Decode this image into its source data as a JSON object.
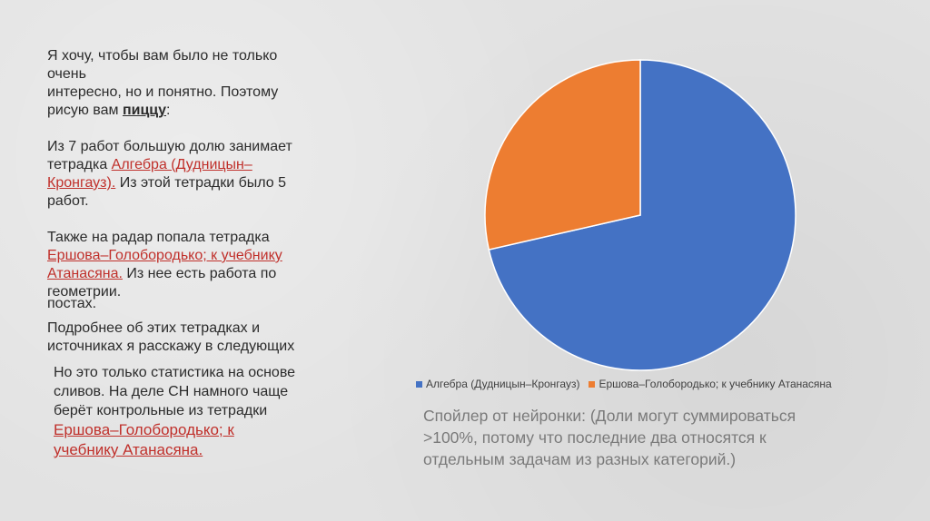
{
  "intro": {
    "line1": "Я хочу, чтобы вам было не только",
    "line2": "очень",
    "line3": "интересно, но и понятно. Поэтому",
    "line4_prefix": "рисую вам ",
    "line4_bold": "пиццу",
    "line4_suffix": ":"
  },
  "para2": {
    "line1": "Из 7 работ большую долю занимает",
    "line2_prefix": "тетрадка ",
    "link_a": "Алгебра (Дудницын–",
    "link_b": "Кронгауз).",
    "line3_suffix": " Из этой тетрадки было 5",
    "line4": "работ."
  },
  "para3": {
    "line1": "Также на радар попала тетрадка",
    "link_a": "Ершова–Голобородько; к учебнику",
    "link_b": "Атанасяна.",
    "line3_suffix": " Из нее есть работа по",
    "line4": "геометрии.",
    "overflow": "постах."
  },
  "para4": {
    "line1": "Подробнее об этих тетрадках и",
    "line2": "источниках я расскажу в следующих"
  },
  "overlap": {
    "line1": "Но это только статистика на основе",
    "line2": "сливов. На деле СН намного чаще",
    "line3": "берёт контрольные из тетрадки",
    "link_a": "Ершова–Голобородько; к",
    "link_b": "учебнику Атанасяна."
  },
  "chart_data": {
    "type": "pie",
    "categories": [
      "Алгебра (Дудницын–Кронгауз)",
      "Ершова–Голобородько; к учебнику Атанасяна"
    ],
    "values": [
      5,
      2
    ],
    "colors": [
      "#4472c4",
      "#ed7d31"
    ],
    "legend": "bottom"
  },
  "spoiler": {
    "line1": "Спойлер от нейронки: (Доли могут суммироваться",
    "line2": ">100%, потому что последние два относятся к",
    "line3": "отдельным задачам из разных категорий.)"
  }
}
